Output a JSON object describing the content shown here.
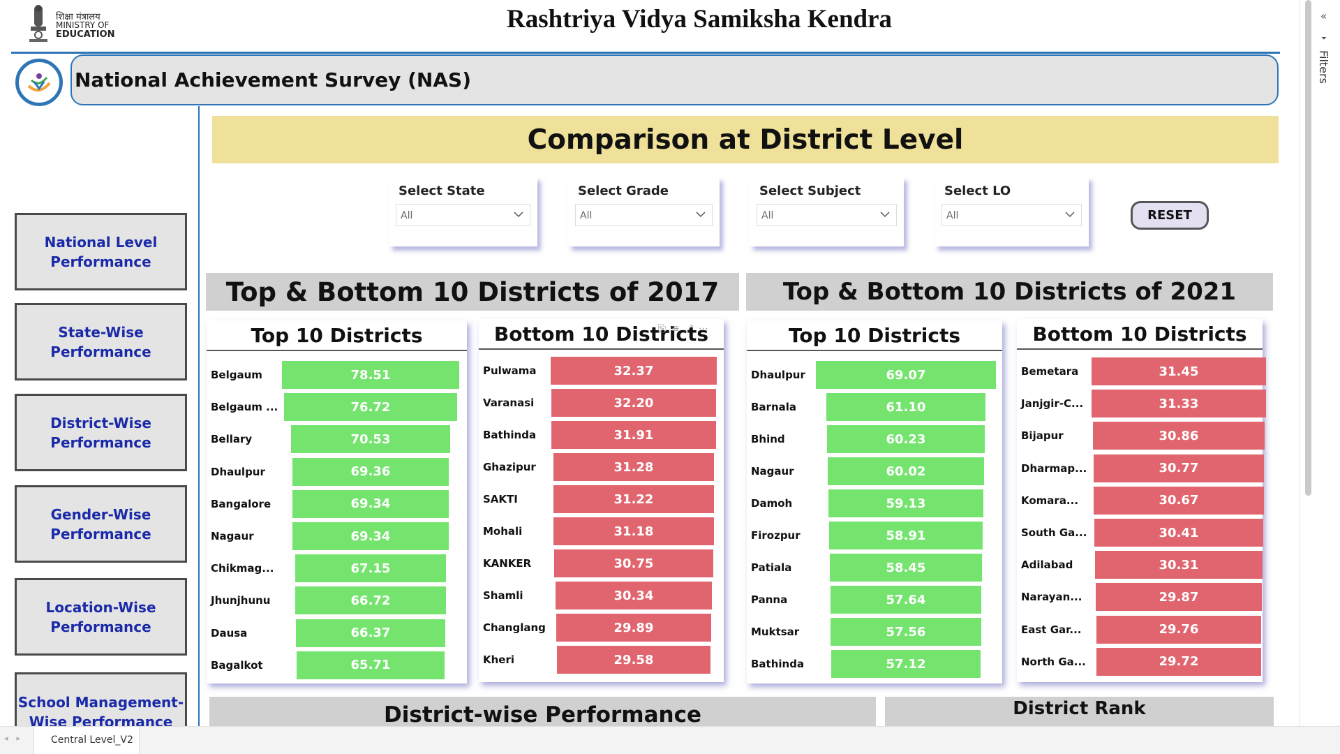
{
  "header": {
    "ministry_hindi": "शिक्षा मंत्रालय",
    "ministry_line1": "MINISTRY OF",
    "ministry_line2": "EDUCATION",
    "app_title": "Rashtriya Vidya Samiksha Kendra",
    "banner_title": "National Achievement Survey (NAS)"
  },
  "sidebar": {
    "items": [
      {
        "label": "National Level Performance"
      },
      {
        "label": "State-Wise Performance"
      },
      {
        "label": "District-Wise Performance"
      },
      {
        "label": "Gender-Wise Performance"
      },
      {
        "label": "Location-Wise Performance"
      },
      {
        "label": "School Management-Wise Performance"
      }
    ]
  },
  "main": {
    "section_title": "Comparison at District Level",
    "filters": [
      {
        "label": "Select State",
        "value": "All"
      },
      {
        "label": "Select Grade",
        "value": "All"
      },
      {
        "label": "Select Subject",
        "value": "All"
      },
      {
        "label": "Select LO",
        "value": "All"
      }
    ],
    "reset_label": "RESET",
    "group_2017": "Top & Bottom 10 Districts of 2017",
    "group_2021": "Top & Bottom 10 Districts of 2021",
    "bottom_left_header": "District-wise Performance",
    "bottom_right_header": "District Rank"
  },
  "lists": {
    "top_2017": {
      "title": "Top 10 Districts",
      "rows": [
        {
          "name": "Belgaum",
          "value": "78.51",
          "score": 78.51
        },
        {
          "name": "Belgaum ...",
          "value": "76.72",
          "score": 76.72
        },
        {
          "name": "Bellary",
          "value": "70.53",
          "score": 70.53
        },
        {
          "name": "Dhaulpur",
          "value": "69.36",
          "score": 69.36
        },
        {
          "name": "Bangalore",
          "value": "69.34",
          "score": 69.34
        },
        {
          "name": "Nagaur",
          "value": "69.34",
          "score": 69.34
        },
        {
          "name": "Chikmag...",
          "value": "67.15",
          "score": 67.15
        },
        {
          "name": "Jhunjhunu",
          "value": "66.72",
          "score": 66.72
        },
        {
          "name": "Dausa",
          "value": "66.37",
          "score": 66.37
        },
        {
          "name": "Bagalkot",
          "value": "65.71",
          "score": 65.71
        }
      ]
    },
    "bottom_2017": {
      "title": "Bottom 10 Districts",
      "rows": [
        {
          "name": "Pulwama",
          "value": "32.37",
          "score": 32.37
        },
        {
          "name": "Varanasi",
          "value": "32.20",
          "score": 32.2
        },
        {
          "name": "Bathinda",
          "value": "31.91",
          "score": 31.91
        },
        {
          "name": "Ghazipur",
          "value": "31.28",
          "score": 31.28
        },
        {
          "name": "SAKTI",
          "value": "31.22",
          "score": 31.22
        },
        {
          "name": "Mohali",
          "value": "31.18",
          "score": 31.18
        },
        {
          "name": "KANKER",
          "value": "30.75",
          "score": 30.75
        },
        {
          "name": "Shamli",
          "value": "30.34",
          "score": 30.34
        },
        {
          "name": "Changlang",
          "value": "29.89",
          "score": 29.89
        },
        {
          "name": "Kheri",
          "value": "29.58",
          "score": 29.58
        }
      ]
    },
    "top_2021": {
      "title": "Top 10 Districts",
      "rows": [
        {
          "name": "Dhaulpur",
          "value": "69.07",
          "score": 69.07
        },
        {
          "name": "Barnala",
          "value": "61.10",
          "score": 61.1
        },
        {
          "name": "Bhind",
          "value": "60.23",
          "score": 60.23
        },
        {
          "name": "Nagaur",
          "value": "60.02",
          "score": 60.02
        },
        {
          "name": "Damoh",
          "value": "59.13",
          "score": 59.13
        },
        {
          "name": "Firozpur",
          "value": "58.91",
          "score": 58.91
        },
        {
          "name": "Patiala",
          "value": "58.45",
          "score": 58.45
        },
        {
          "name": "Panna",
          "value": "57.64",
          "score": 57.64
        },
        {
          "name": "Muktsar",
          "value": "57.56",
          "score": 57.56
        },
        {
          "name": "Bathinda",
          "value": "57.12",
          "score": 57.12
        }
      ]
    },
    "bottom_2021": {
      "title": "Bottom 10 Districts",
      "rows": [
        {
          "name": "Bemetara",
          "value": "31.45",
          "score": 31.45
        },
        {
          "name": "Janjgir-C...",
          "value": "31.33",
          "score": 31.33
        },
        {
          "name": "Bijapur",
          "value": "30.86",
          "score": 30.86
        },
        {
          "name": "Dharmap...",
          "value": "30.77",
          "score": 30.77
        },
        {
          "name": "Komara...",
          "value": "30.67",
          "score": 30.67
        },
        {
          "name": "South Ga...",
          "value": "30.41",
          "score": 30.41
        },
        {
          "name": "Adilabad",
          "value": "30.31",
          "score": 30.31
        },
        {
          "name": "Narayan...",
          "value": "29.87",
          "score": 29.87
        },
        {
          "name": "East Gar...",
          "value": "29.76",
          "score": 29.76
        },
        {
          "name": "North Ga...",
          "value": "29.72",
          "score": 29.72
        }
      ]
    }
  },
  "filters_pane": {
    "label": "Filters"
  },
  "tabbar": {
    "page_tab": "Central Level_V2"
  },
  "colors": {
    "accent": "#2e75b6",
    "top_bar": "#75e46e",
    "bottom_bar": "#e0656e",
    "title_band": "#efe199",
    "nav_text": "#1a2aa8"
  }
}
